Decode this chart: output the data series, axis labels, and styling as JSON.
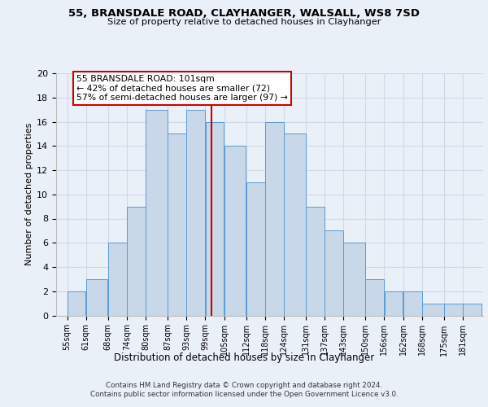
{
  "title": "55, BRANSDALE ROAD, CLAYHANGER, WALSALL, WS8 7SD",
  "subtitle": "Size of property relative to detached houses in Clayhanger",
  "xlabel": "Distribution of detached houses by size in Clayhanger",
  "ylabel": "Number of detached properties",
  "bar_labels": [
    "55sqm",
    "61sqm",
    "68sqm",
    "74sqm",
    "80sqm",
    "87sqm",
    "93sqm",
    "99sqm",
    "105sqm",
    "112sqm",
    "118sqm",
    "124sqm",
    "131sqm",
    "137sqm",
    "143sqm",
    "150sqm",
    "156sqm",
    "162sqm",
    "168sqm",
    "175sqm",
    "181sqm"
  ],
  "bar_values": [
    2,
    3,
    6,
    9,
    17,
    15,
    17,
    16,
    14,
    11,
    16,
    15,
    9,
    7,
    6,
    3,
    2,
    2,
    1,
    1,
    1
  ],
  "bar_color": "#c8d8e8",
  "bar_edgecolor": "#5b9bd5",
  "vline_x": 101,
  "vline_color": "#cc0000",
  "annotation_line1": "55 BRANSDALE ROAD: 101sqm",
  "annotation_line2": "← 42% of detached houses are smaller (72)",
  "annotation_line3": "57% of semi-detached houses are larger (97) →",
  "annotation_box_edgecolor": "#cc0000",
  "annotation_box_facecolor": "#ffffff",
  "ylim": [
    0,
    20
  ],
  "yticks": [
    0,
    2,
    4,
    6,
    8,
    10,
    12,
    14,
    16,
    18,
    20
  ],
  "grid_color": "#d0d8e8",
  "background_color": "#eaf0f8",
  "footer_line1": "Contains HM Land Registry data © Crown copyright and database right 2024.",
  "footer_line2": "Contains public sector information licensed under the Open Government Licence v3.0."
}
